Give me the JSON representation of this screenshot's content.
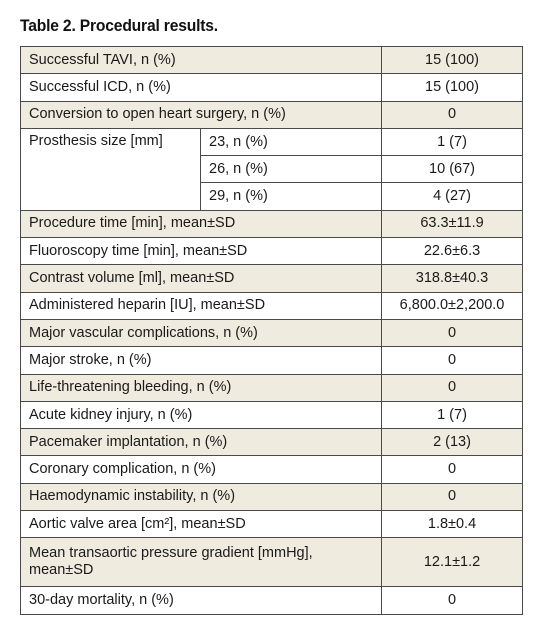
{
  "title": "Table 2. Procedural results.",
  "rows": [
    {
      "label": "Successful TAVI, n (%)",
      "value": "15 (100)"
    },
    {
      "label": "Successful ICD, n (%)",
      "value": "15 (100)"
    },
    {
      "label": "Conversion to open heart surgery, n (%)",
      "value": "0"
    },
    {
      "label": "Prosthesis size [mm]",
      "subrows": [
        {
          "size": "23, n (%)",
          "value": "1 (7)"
        },
        {
          "size": "26, n (%)",
          "value": "10 (67)"
        },
        {
          "size": "29, n (%)",
          "value": "4 (27)"
        }
      ]
    },
    {
      "label": "Procedure time [min], mean±SD",
      "value": "63.3±11.9"
    },
    {
      "label": "Fluoroscopy time [min], mean±SD",
      "value": "22.6±6.3"
    },
    {
      "label": "Contrast volume [ml], mean±SD",
      "value": "318.8±40.3"
    },
    {
      "label": "Administered heparin [IU], mean±SD",
      "value": "6,800.0±2,200.0"
    },
    {
      "label": "Major vascular complications, n (%)",
      "value": "0"
    },
    {
      "label": "Major stroke, n (%)",
      "value": "0"
    },
    {
      "label": "Life-threatening bleeding, n (%)",
      "value": "0"
    },
    {
      "label": "Acute kidney injury, n (%)",
      "value": "1 (7)"
    },
    {
      "label": "Pacemaker implantation, n (%)",
      "value": "2 (13)"
    },
    {
      "label": "Coronary complication, n (%)",
      "value": "0"
    },
    {
      "label": "Haemodynamic instability, n (%)",
      "value": "0"
    },
    {
      "label": "Aortic valve area [cm²], mean±SD",
      "value": "1.8±0.4"
    },
    {
      "label": "Mean transaortic pressure gradient [mmHg], mean±SD",
      "value": "12.1±1.2"
    },
    {
      "label": "30-day mortality, n (%)",
      "value": "0"
    }
  ],
  "colors": {
    "shaded_row": "#efebdf",
    "border": "#4a4a4a"
  }
}
